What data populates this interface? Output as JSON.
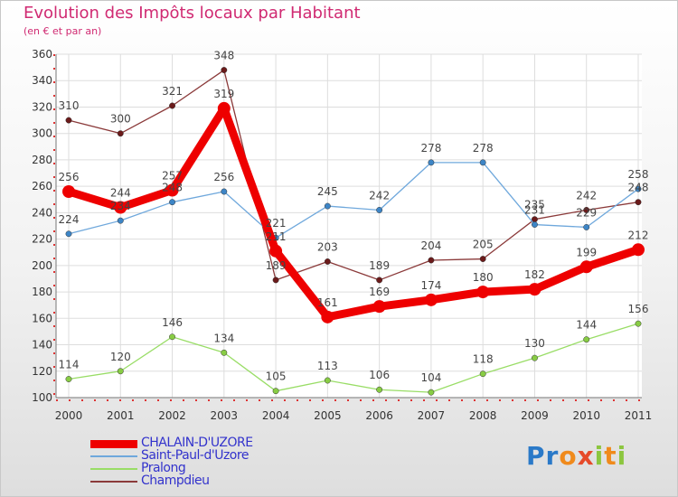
{
  "title": "Evolution des Impôts locaux par Habitant",
  "subtitle": "(en € et par an)",
  "logo": {
    "text": "Proxiti",
    "letters": [
      "P",
      "r",
      "o",
      "x",
      "i",
      "t",
      "i"
    ],
    "colors": [
      "#2a79c8",
      "#2a79c8",
      "#f08a1c",
      "#e64a2a",
      "#8cc63f",
      "#f08a1c",
      "#8cc63f"
    ]
  },
  "chart_data": {
    "type": "line",
    "title": "Evolution des Impôts locaux par Habitant",
    "ylabel": "(en € et par an)",
    "xlabel": "",
    "x": [
      "2000",
      "2001",
      "2002",
      "2003",
      "2004",
      "2005",
      "2006",
      "2007",
      "2008",
      "2009",
      "2010",
      "2011"
    ],
    "ylim": [
      100,
      360
    ],
    "yticks": [
      100,
      120,
      140,
      160,
      180,
      200,
      220,
      240,
      260,
      280,
      300,
      320,
      340,
      360
    ],
    "grid": true,
    "legend_position": "bottom-left",
    "series": [
      {
        "name": "Pralong",
        "color": "#99dd66",
        "marker": "#88cc44",
        "values": [
          114,
          120,
          146,
          134,
          105,
          113,
          106,
          104,
          118,
          130,
          144,
          156
        ]
      },
      {
        "name": "Champdieu",
        "color": "#8b3a3a",
        "marker": "#6b1a1a",
        "values": [
          310,
          300,
          321,
          348,
          189,
          203,
          189,
          204,
          205,
          235,
          242,
          248
        ]
      },
      {
        "name": "Saint-Paul-d'Uzore",
        "color": "#6fa8dc",
        "marker": "#3d85c6",
        "values": [
          224,
          234,
          248,
          256,
          221,
          245,
          242,
          278,
          278,
          231,
          229,
          258
        ]
      },
      {
        "name": "CHALAIN-D'UZORE",
        "color": "#ee0000",
        "marker": "#ee0000",
        "values": [
          256,
          244,
          257,
          319,
          211,
          161,
          169,
          174,
          180,
          182,
          199,
          212
        ]
      }
    ],
    "legend_order": [
      "CHALAIN-D'UZORE",
      "Saint-Paul-d'Uzore",
      "Pralong",
      "Champdieu"
    ]
  }
}
